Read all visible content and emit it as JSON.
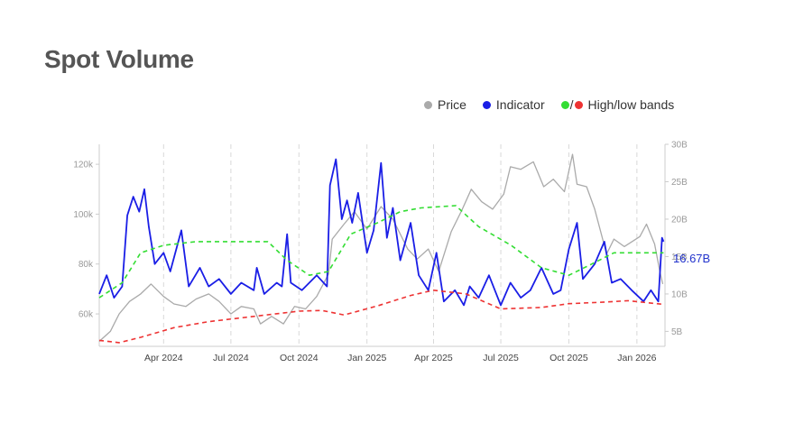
{
  "title": "Spot Volume",
  "legend": {
    "price": "Price",
    "indicator": "Indicator",
    "bands": "High/low bands",
    "separator": "/"
  },
  "colors": {
    "price": "#aaaaaa",
    "indicator": "#1a1ee6",
    "band_high": "#33dd33",
    "band_low": "#ee3333"
  },
  "chart_data": {
    "type": "line",
    "x_ticks": [
      "Apr 2024",
      "Jul 2024",
      "Oct 2024",
      "Jan 2025",
      "Apr 2025",
      "Jul 2025",
      "Oct 2025",
      "Jan 2026"
    ],
    "x_range": [
      "2024-01-05",
      "2026-02-08"
    ],
    "y_left": {
      "ticks": [
        "60k",
        "80k",
        "100k",
        "120k"
      ],
      "range": [
        47000,
        128000
      ]
    },
    "y_right": {
      "ticks": [
        "5B",
        "10B",
        "15B",
        "20B",
        "25B",
        "30B"
      ],
      "range": [
        3000,
        30000
      ]
    },
    "last_value_label": "16.67B",
    "grid": "vertical dashed",
    "legend_position": "top-right",
    "series": [
      {
        "name": "Price",
        "axis": "left",
        "style": "solid",
        "points": [
          [
            "2024-01-05",
            49000
          ],
          [
            "2024-01-20",
            53000
          ],
          [
            "2024-02-01",
            60000
          ],
          [
            "2024-02-15",
            65000
          ],
          [
            "2024-03-01",
            68000
          ],
          [
            "2024-03-15",
            72000
          ],
          [
            "2024-04-01",
            67000
          ],
          [
            "2024-04-15",
            64000
          ],
          [
            "2024-05-01",
            63000
          ],
          [
            "2024-05-15",
            66000
          ],
          [
            "2024-06-01",
            68000
          ],
          [
            "2024-06-15",
            65000
          ],
          [
            "2024-07-01",
            60000
          ],
          [
            "2024-07-15",
            63000
          ],
          [
            "2024-08-01",
            62000
          ],
          [
            "2024-08-10",
            56000
          ],
          [
            "2024-08-25",
            59000
          ],
          [
            "2024-09-10",
            56000
          ],
          [
            "2024-09-25",
            63000
          ],
          [
            "2024-10-10",
            62000
          ],
          [
            "2024-10-25",
            67000
          ],
          [
            "2024-11-10",
            76000
          ],
          [
            "2024-11-15",
            90000
          ],
          [
            "2024-12-01",
            96000
          ],
          [
            "2024-12-15",
            101000
          ],
          [
            "2025-01-01",
            94000
          ],
          [
            "2025-01-20",
            103000
          ],
          [
            "2025-02-05",
            98000
          ],
          [
            "2025-02-25",
            86000
          ],
          [
            "2025-03-10",
            82000
          ],
          [
            "2025-03-25",
            86000
          ],
          [
            "2025-04-08",
            77000
          ],
          [
            "2025-04-25",
            93000
          ],
          [
            "2025-05-10",
            102000
          ],
          [
            "2025-05-22",
            110000
          ],
          [
            "2025-06-05",
            105000
          ],
          [
            "2025-06-20",
            102000
          ],
          [
            "2025-07-05",
            108000
          ],
          [
            "2025-07-14",
            119000
          ],
          [
            "2025-07-28",
            118000
          ],
          [
            "2025-08-14",
            121000
          ],
          [
            "2025-08-28",
            111000
          ],
          [
            "2025-09-10",
            114000
          ],
          [
            "2025-09-25",
            109000
          ],
          [
            "2025-10-06",
            124000
          ],
          [
            "2025-10-12",
            112000
          ],
          [
            "2025-10-25",
            111000
          ],
          [
            "2025-11-05",
            102000
          ],
          [
            "2025-11-21",
            84000
          ],
          [
            "2025-12-01",
            90000
          ],
          [
            "2025-12-15",
            87000
          ],
          [
            "2026-01-05",
            91000
          ],
          [
            "2026-01-14",
            96000
          ],
          [
            "2026-01-25",
            88000
          ],
          [
            "2026-02-01",
            77000
          ],
          [
            "2026-02-05",
            72000
          ]
        ]
      },
      {
        "name": "Indicator",
        "axis": "right",
        "style": "solid",
        "points": [
          [
            "2024-01-05",
            10000
          ],
          [
            "2024-01-15",
            12500
          ],
          [
            "2024-01-25",
            9500
          ],
          [
            "2024-02-05",
            11000
          ],
          [
            "2024-02-12",
            20500
          ],
          [
            "2024-02-20",
            23000
          ],
          [
            "2024-02-28",
            21000
          ],
          [
            "2024-03-06",
            24000
          ],
          [
            "2024-03-12",
            19000
          ],
          [
            "2024-03-20",
            14000
          ],
          [
            "2024-04-01",
            15500
          ],
          [
            "2024-04-10",
            13000
          ],
          [
            "2024-04-25",
            18500
          ],
          [
            "2024-05-05",
            11000
          ],
          [
            "2024-05-20",
            13500
          ],
          [
            "2024-06-01",
            11000
          ],
          [
            "2024-06-15",
            12000
          ],
          [
            "2024-07-01",
            10000
          ],
          [
            "2024-07-15",
            11500
          ],
          [
            "2024-08-01",
            10500
          ],
          [
            "2024-08-05",
            13500
          ],
          [
            "2024-08-15",
            10000
          ],
          [
            "2024-09-01",
            11500
          ],
          [
            "2024-09-08",
            11000
          ],
          [
            "2024-09-15",
            18000
          ],
          [
            "2024-09-20",
            11500
          ],
          [
            "2024-10-05",
            10500
          ],
          [
            "2024-10-15",
            11500
          ],
          [
            "2024-10-25",
            12500
          ],
          [
            "2024-11-08",
            11000
          ],
          [
            "2024-11-12",
            24500
          ],
          [
            "2024-11-20",
            28000
          ],
          [
            "2024-11-28",
            20000
          ],
          [
            "2024-12-05",
            22500
          ],
          [
            "2024-12-12",
            19500
          ],
          [
            "2024-12-20",
            23500
          ],
          [
            "2025-01-01",
            15500
          ],
          [
            "2025-01-10",
            18500
          ],
          [
            "2025-01-20",
            27500
          ],
          [
            "2025-01-28",
            17500
          ],
          [
            "2025-02-05",
            21500
          ],
          [
            "2025-02-15",
            14500
          ],
          [
            "2025-03-01",
            19500
          ],
          [
            "2025-03-12",
            12500
          ],
          [
            "2025-03-25",
            10500
          ],
          [
            "2025-04-05",
            15500
          ],
          [
            "2025-04-15",
            9000
          ],
          [
            "2025-04-30",
            10500
          ],
          [
            "2025-05-12",
            8500
          ],
          [
            "2025-05-20",
            11000
          ],
          [
            "2025-06-01",
            9500
          ],
          [
            "2025-06-15",
            12500
          ],
          [
            "2025-07-01",
            8500
          ],
          [
            "2025-07-14",
            11500
          ],
          [
            "2025-07-28",
            9500
          ],
          [
            "2025-08-10",
            10500
          ],
          [
            "2025-08-25",
            13500
          ],
          [
            "2025-09-10",
            10000
          ],
          [
            "2025-09-20",
            10500
          ],
          [
            "2025-10-01",
            16000
          ],
          [
            "2025-10-12",
            19500
          ],
          [
            "2025-10-20",
            12000
          ],
          [
            "2025-11-05",
            14000
          ],
          [
            "2025-11-18",
            17000
          ],
          [
            "2025-11-28",
            11500
          ],
          [
            "2025-12-10",
            12000
          ],
          [
            "2025-12-25",
            10500
          ],
          [
            "2026-01-10",
            9000
          ],
          [
            "2026-01-20",
            10500
          ],
          [
            "2026-01-30",
            9000
          ],
          [
            "2026-02-04",
            17500
          ],
          [
            "2026-02-06",
            17000
          ]
        ]
      },
      {
        "name": "High band",
        "axis": "right",
        "style": "dashed",
        "points": [
          [
            "2024-01-05",
            9500
          ],
          [
            "2024-02-05",
            11500
          ],
          [
            "2024-03-01",
            15500
          ],
          [
            "2024-04-01",
            16500
          ],
          [
            "2024-05-15",
            17000
          ],
          [
            "2024-07-01",
            17000
          ],
          [
            "2024-08-20",
            17000
          ],
          [
            "2024-09-15",
            14500
          ],
          [
            "2024-10-15",
            12500
          ],
          [
            "2024-11-10",
            13000
          ],
          [
            "2024-12-10",
            18000
          ],
          [
            "2025-01-15",
            19500
          ],
          [
            "2025-02-15",
            21000
          ],
          [
            "2025-03-15",
            21500
          ],
          [
            "2025-05-01",
            21800
          ],
          [
            "2025-06-01",
            19000
          ],
          [
            "2025-07-15",
            16500
          ],
          [
            "2025-08-25",
            13500
          ],
          [
            "2025-10-01",
            12500
          ],
          [
            "2025-11-01",
            14000
          ],
          [
            "2025-12-01",
            15500
          ],
          [
            "2026-01-10",
            15500
          ],
          [
            "2026-02-06",
            15500
          ]
        ]
      },
      {
        "name": "Low band",
        "axis": "right",
        "style": "dashed",
        "points": [
          [
            "2024-01-05",
            3800
          ],
          [
            "2024-02-01",
            3500
          ],
          [
            "2024-03-01",
            4200
          ],
          [
            "2024-04-15",
            5500
          ],
          [
            "2024-06-01",
            6300
          ],
          [
            "2024-08-01",
            7000
          ],
          [
            "2024-10-01",
            7700
          ],
          [
            "2024-11-01",
            7800
          ],
          [
            "2024-12-01",
            7200
          ],
          [
            "2025-01-15",
            8400
          ],
          [
            "2025-03-01",
            9800
          ],
          [
            "2025-04-01",
            10500
          ],
          [
            "2025-05-15",
            10000
          ],
          [
            "2025-07-01",
            8000
          ],
          [
            "2025-08-25",
            8200
          ],
          [
            "2025-10-01",
            8700
          ],
          [
            "2025-11-15",
            8900
          ],
          [
            "2025-12-20",
            9100
          ],
          [
            "2026-02-06",
            8600
          ]
        ]
      }
    ]
  }
}
